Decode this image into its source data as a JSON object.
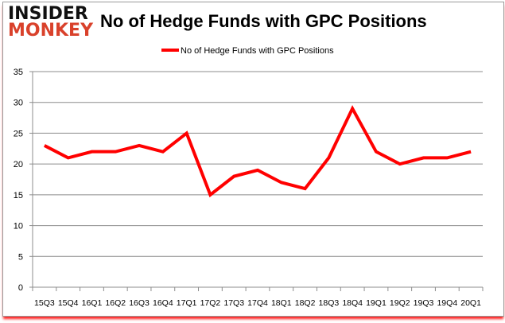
{
  "logo": {
    "line1": "INSIDER",
    "line2": "MONKEY",
    "colors": [
      "#111111",
      "#d9412b"
    ]
  },
  "chart_data": {
    "type": "line",
    "title": "No of Hedge Funds with GPC Positions",
    "categories": [
      "15Q3",
      "15Q4",
      "16Q1",
      "16Q2",
      "16Q3",
      "16Q4",
      "17Q1",
      "17Q2",
      "17Q3",
      "17Q4",
      "18Q1",
      "18Q2",
      "18Q3",
      "18Q4",
      "19Q1",
      "19Q2",
      "19Q3",
      "19Q4",
      "20Q1"
    ],
    "series": [
      {
        "name": "No of Hedge Funds with GPC Positions",
        "color": "#ff0000",
        "values": [
          23,
          21,
          22,
          22,
          23,
          22,
          25,
          15,
          18,
          19,
          17,
          16,
          21,
          29,
          22,
          20,
          21,
          21,
          22
        ]
      }
    ],
    "yticks": [
      0,
      5,
      10,
      15,
      20,
      25,
      30,
      35
    ],
    "ylim": [
      0,
      35
    ],
    "grid": true,
    "legend": "top-center"
  }
}
